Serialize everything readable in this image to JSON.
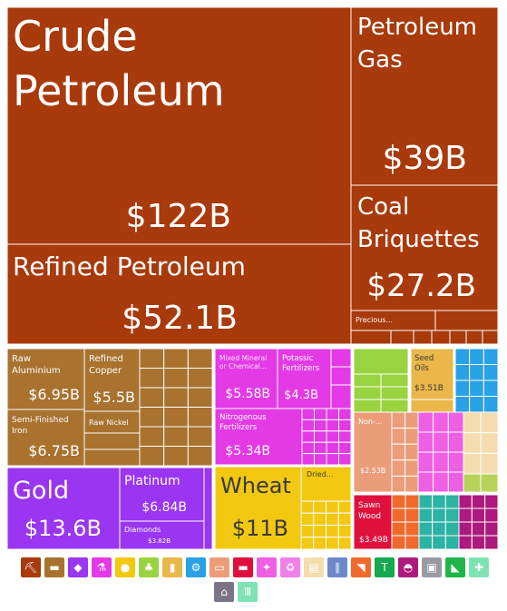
{
  "chart_data": {
    "type": "treemap",
    "currency": "USD",
    "items": [
      {
        "name": "Crude Petroleum",
        "value_label": "$122B",
        "value": 122,
        "group": "mineral"
      },
      {
        "name": "Refined Petroleum",
        "value_label": "$52.1B",
        "value": 52.1,
        "group": "mineral"
      },
      {
        "name": "Petroleum Gas",
        "value_label": "$39B",
        "value": 39,
        "group": "mineral"
      },
      {
        "name": "Coal Briquettes",
        "value_label": "$27.2B",
        "value": 27.2,
        "group": "mineral"
      },
      {
        "name": "Precious...",
        "value_label": "",
        "group": "mineral"
      },
      {
        "name": "Raw Aluminium",
        "value_label": "$6.95B",
        "value": 6.95,
        "group": "metals"
      },
      {
        "name": "Refined Copper",
        "value_label": "$5.5B",
        "value": 5.5,
        "group": "metals"
      },
      {
        "name": "Semi-Finished Iron",
        "value_label": "$6.75B",
        "value": 6.75,
        "group": "metals"
      },
      {
        "name": "Raw Nickel",
        "value_label": "",
        "group": "metals"
      },
      {
        "name": "Gold",
        "value_label": "$13.6B",
        "value": 13.6,
        "group": "precious"
      },
      {
        "name": "Platinum",
        "value_label": "$6.84B",
        "value": 6.84,
        "group": "precious"
      },
      {
        "name": "Diamonds",
        "value_label": "$3.82B",
        "value": 3.82,
        "group": "precious"
      },
      {
        "name": "Mixed Mineral or Chemical...",
        "value_label": "$5.58B",
        "value": 5.58,
        "group": "chemical"
      },
      {
        "name": "Potassic Fertilizers",
        "value_label": "$4.3B",
        "value": 4.3,
        "group": "chemical"
      },
      {
        "name": "Nitrogenous Fertilizers",
        "value_label": "$5.34B",
        "value": 5.34,
        "group": "chemical"
      },
      {
        "name": "Wheat",
        "value_label": "$11B",
        "value": 11,
        "group": "vegetable"
      },
      {
        "name": "Dried...",
        "value_label": "",
        "group": "vegetable"
      },
      {
        "name": "Seed Oils",
        "value_label": "$3.51B",
        "value": 3.51,
        "group": "foodstuffs"
      },
      {
        "name": "Non-...",
        "value_label": "$2.53B",
        "value": 2.53,
        "group": "animal-hides"
      },
      {
        "name": "Sawn Wood",
        "value_label": "$3.49B",
        "value": 3.49,
        "group": "wood"
      }
    ]
  },
  "colors": {
    "mineral": "#a83a0c",
    "metals": "#a9722f",
    "precious": "#9a35f2",
    "chemical": "#e33ae6",
    "vegetable": "#f2c811",
    "foodstuffs": "#e9b74a",
    "animal_hides": "#eb9d79",
    "wood": "#e0103c",
    "machines": "#2aa1e6",
    "transport": "#6d5ad1",
    "stone": "#f4dcaf",
    "plastics": "#ef5fe3",
    "misc": "#9ad340"
  },
  "legend": [
    {
      "icon": "pickaxe-icon",
      "glyph": "⛏",
      "color": "#a83a0c"
    },
    {
      "icon": "anvil-icon",
      "glyph": "▬",
      "color": "#a9722f"
    },
    {
      "icon": "gem-icon",
      "glyph": "◆",
      "color": "#9a35f2"
    },
    {
      "icon": "flask-icon",
      "glyph": "⚗",
      "color": "#e33ae6"
    },
    {
      "icon": "fruit-icon",
      "glyph": "●",
      "color": "#f2c811"
    },
    {
      "icon": "wheat-icon",
      "glyph": "♣",
      "color": "#9ad340"
    },
    {
      "icon": "can-icon",
      "glyph": "▮",
      "color": "#e9b74a"
    },
    {
      "icon": "gear-icon",
      "glyph": "⚙",
      "color": "#2aa1e6"
    },
    {
      "icon": "hide-icon",
      "glyph": "▭",
      "color": "#eb9d79"
    },
    {
      "icon": "plank-icon",
      "glyph": "▬",
      "color": "#e0103c"
    },
    {
      "icon": "chemical-icon",
      "glyph": "✦",
      "color": "#ef5fe3"
    },
    {
      "icon": "recycle-icon",
      "glyph": "♻",
      "color": "#f07fe9"
    },
    {
      "icon": "paper-icon",
      "glyph": "▤",
      "color": "#f4dcaf"
    },
    {
      "icon": "road-icon",
      "glyph": "∥",
      "color": "#6d87c9"
    },
    {
      "icon": "fish-icon",
      "glyph": "◥",
      "color": "#ef6a2c"
    },
    {
      "icon": "shirt-icon",
      "glyph": "T",
      "color": "#14a84f"
    },
    {
      "icon": "drop-icon",
      "glyph": "◓",
      "color": "#ad1a7e"
    },
    {
      "icon": "box-icon",
      "glyph": "▣",
      "color": "#9a9aa6"
    },
    {
      "icon": "shoe-icon",
      "glyph": "◣",
      "color": "#1fb54a"
    },
    {
      "icon": "leather-icon",
      "glyph": "✚",
      "color": "#7ee3b3"
    },
    {
      "icon": "lamp-icon",
      "glyph": "⌂",
      "color": "#7a7486"
    },
    {
      "icon": "instrument-icon",
      "glyph": "Ⅲ",
      "color": "#7ee3b3"
    }
  ]
}
